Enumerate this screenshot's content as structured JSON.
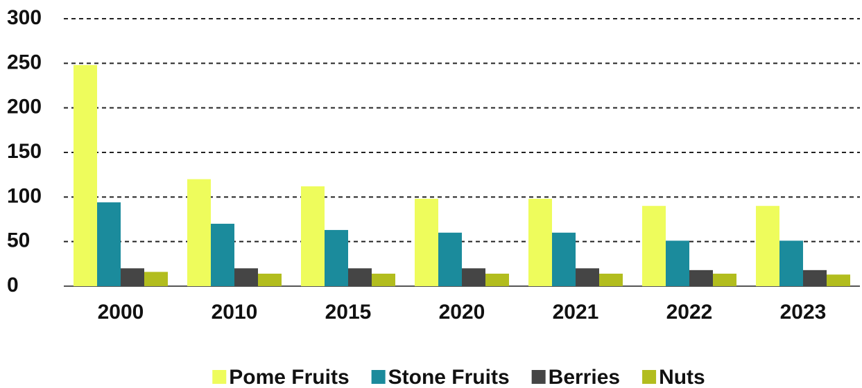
{
  "chart_data": {
    "type": "bar",
    "categories": [
      "2000",
      "2010",
      "2015",
      "2020",
      "2021",
      "2022",
      "2023"
    ],
    "series": [
      {
        "name": "Pome Fruits",
        "color": "#eefc5c",
        "values": [
          248,
          120,
          112,
          98,
          98,
          90,
          90
        ]
      },
      {
        "name": "Stone Fruits",
        "color": "#1b8b9c",
        "values": [
          94,
          70,
          63,
          60,
          60,
          51,
          51
        ]
      },
      {
        "name": "Berries",
        "color": "#454545",
        "values": [
          20,
          20,
          20,
          20,
          20,
          18,
          18
        ]
      },
      {
        "name": "Nuts",
        "color": "#b2bd1e",
        "values": [
          16,
          14,
          14,
          14,
          14,
          14,
          13
        ]
      }
    ],
    "ylim": [
      0,
      300
    ],
    "yticks": [
      0,
      50,
      100,
      150,
      200,
      250,
      300
    ],
    "grid": true,
    "legend": "bottom"
  }
}
